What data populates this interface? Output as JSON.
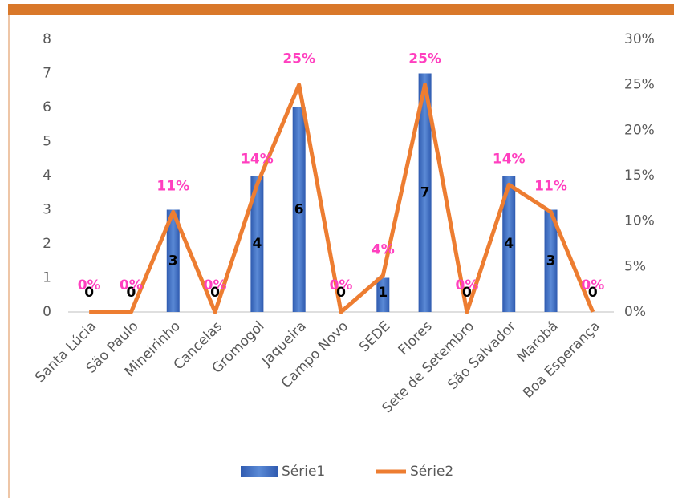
{
  "chart_data": {
    "type": "bar-line",
    "categories": [
      "Santa Lúcia",
      "São Paulo",
      "Mineirinho",
      "Cancelas",
      "Gromogol",
      "Jaqueira",
      "Campo Novo",
      "SEDE",
      "Flores",
      "Sete de Setembro",
      "São Salvador",
      "Marobá",
      "Boa Esperança"
    ],
    "series": [
      {
        "name": "Série1",
        "type": "bar",
        "color": "#4472c4",
        "values": [
          0,
          0,
          3,
          0,
          4,
          6,
          0,
          1,
          7,
          0,
          4,
          3,
          0
        ]
      },
      {
        "name": "Série2",
        "type": "line",
        "axis": "y2",
        "color": "#ed7d31",
        "values": [
          0,
          0,
          11,
          0,
          14,
          25,
          0,
          4,
          25,
          0,
          14,
          11,
          0
        ],
        "value_labels": [
          "0%",
          "0%",
          "11%",
          "0%",
          "14%",
          "25%",
          "0%",
          "4%",
          "25%",
          "0%",
          "14%",
          "11%",
          "0%"
        ]
      }
    ],
    "ylim": [
      0,
      8
    ],
    "yticks": [
      0,
      1,
      2,
      3,
      4,
      5,
      6,
      7,
      8
    ],
    "y2lim": [
      0,
      30
    ],
    "y2ticks": [
      {
        "value": 0,
        "label": "0%"
      },
      {
        "value": 5,
        "label": "5%"
      },
      {
        "value": 10,
        "label": "10%"
      },
      {
        "value": 15,
        "label": "15%"
      },
      {
        "value": 20,
        "label": "20%"
      },
      {
        "value": 25,
        "label": "25%"
      },
      {
        "value": 30,
        "label": "30%"
      }
    ],
    "legend": "bottom"
  }
}
